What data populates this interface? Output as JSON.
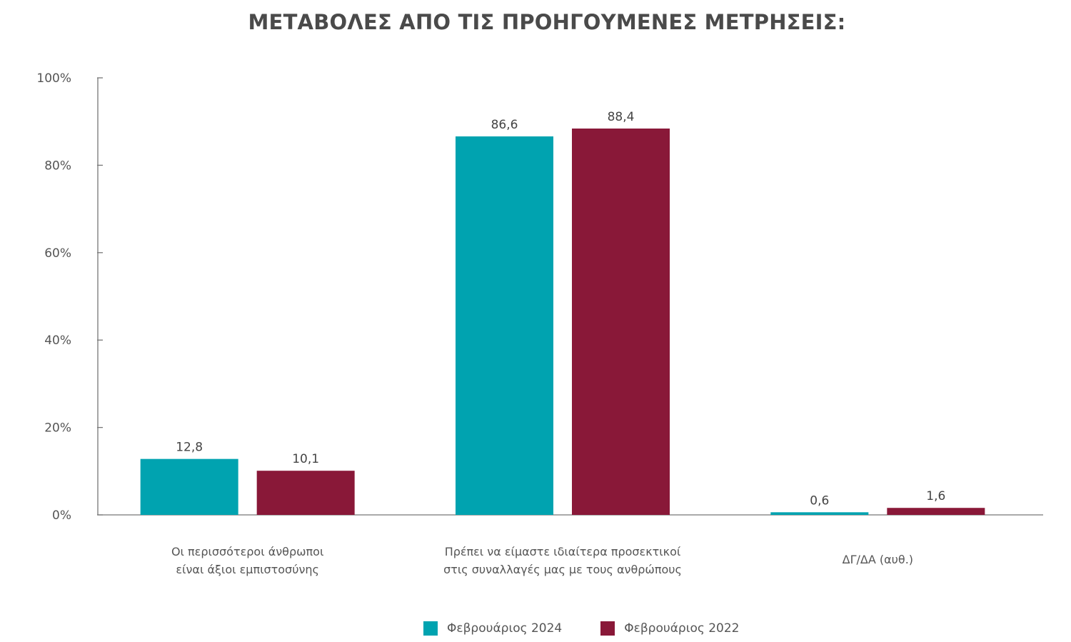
{
  "chart_data": {
    "type": "bar",
    "title": "ΜΕΤΑΒΟΛΕΣ ΑΠΟ ΤΙΣ ΠΡΟΗΓΟΥΜΕΝΕΣ ΜΕΤΡΗΣΕΙΣ:",
    "categories": [
      [
        "Οι περισσότεροι άνθρωποι",
        "είναι άξιοι εμπιστοσύνης"
      ],
      [
        "Πρέπει να είμαστε ιδιαίτερα προσεκτικοί",
        "στις συναλλαγές μας με τους ανθρώπους"
      ],
      [
        "ΔΓ/ΔΑ (αυθ.)"
      ]
    ],
    "series": [
      {
        "name": "Φεβρουάριος 2024",
        "color": "#00a3b0",
        "values": [
          12.8,
          86.6,
          0.6
        ],
        "labels": [
          "12,8",
          "86,6",
          "0,6"
        ]
      },
      {
        "name": "Φεβρουάριος 2022",
        "color": "#891838",
        "values": [
          10.1,
          88.4,
          1.6
        ],
        "labels": [
          "10,1",
          "88,4",
          "1,6"
        ]
      }
    ],
    "ylim": [
      0,
      100
    ],
    "yticks": [
      0,
      20,
      40,
      60,
      80,
      100
    ],
    "ytick_labels": [
      "0%",
      "20%",
      "40%",
      "60%",
      "80%",
      "100%"
    ],
    "xlabel": "",
    "ylabel": "",
    "grid": false,
    "legend_position": "bottom-center"
  }
}
